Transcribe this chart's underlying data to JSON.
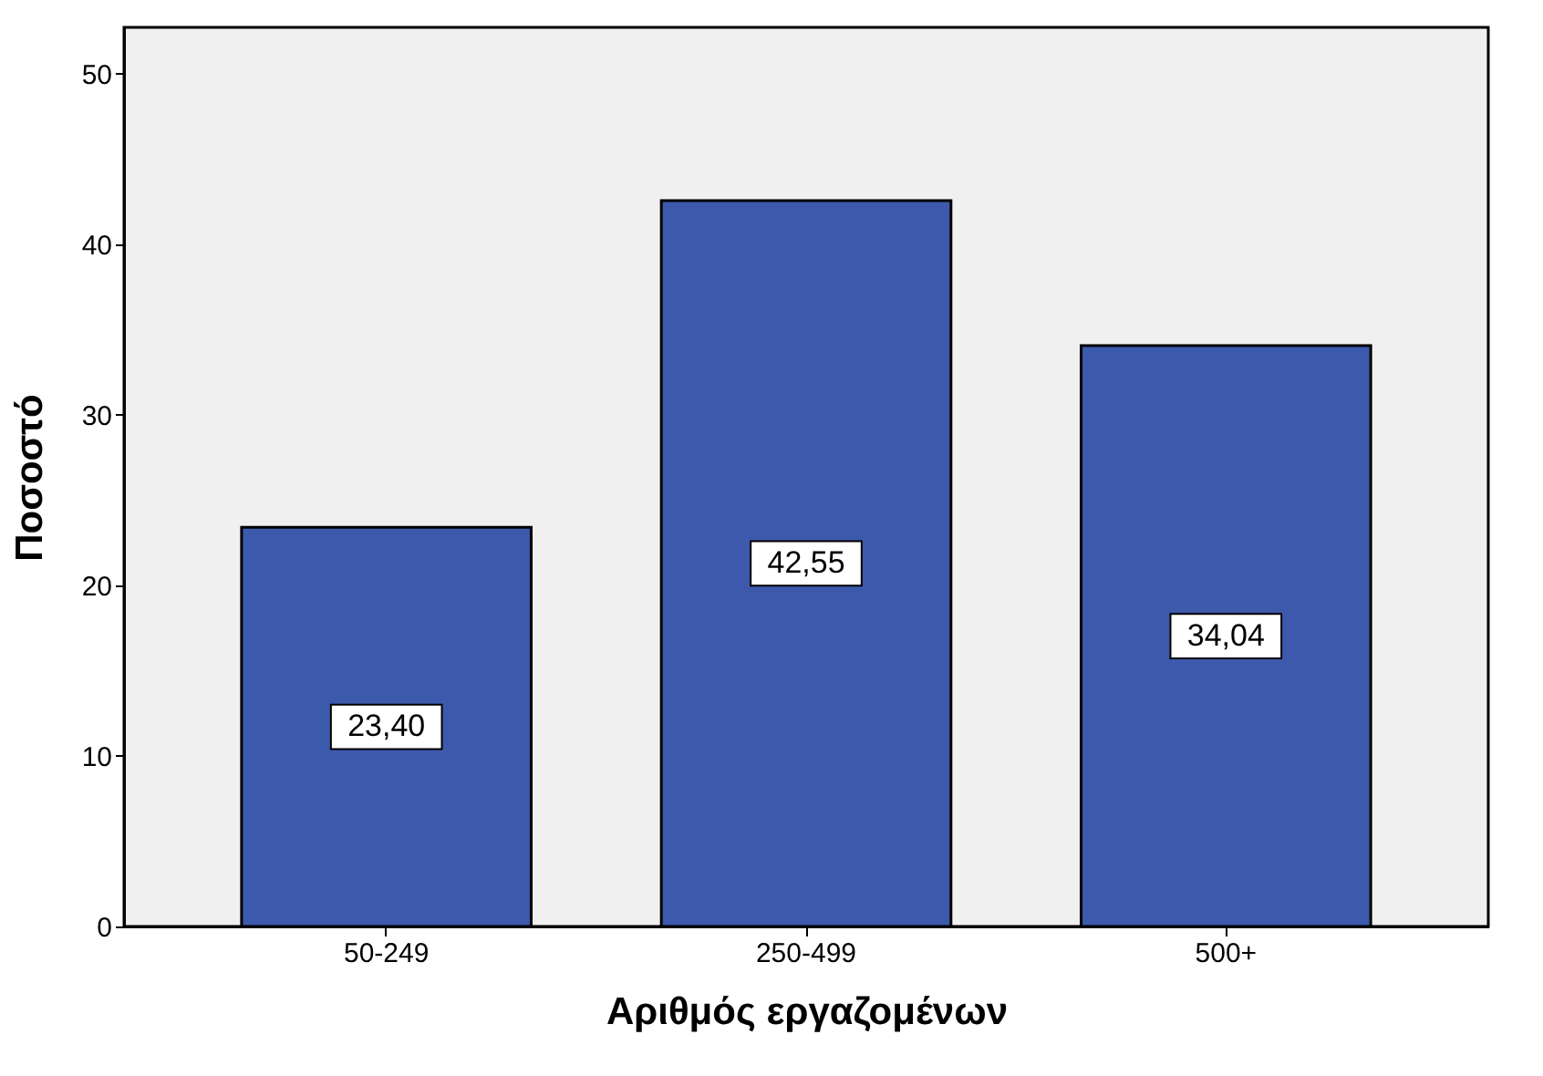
{
  "chart_data": {
    "type": "bar",
    "xlabel": "Αριθμός εργαζομένων",
    "ylabel": "Ποσοστό",
    "categories": [
      "50-249",
      "250-499",
      "500+"
    ],
    "values": [
      23.4,
      42.55,
      34.04
    ],
    "value_labels": [
      "23,40",
      "42,55",
      "34,04"
    ],
    "color": "#3d59ab",
    "ylim": [
      0,
      52.7
    ],
    "yticks": [
      0,
      10,
      20,
      30,
      40,
      50
    ],
    "grid": false
  }
}
